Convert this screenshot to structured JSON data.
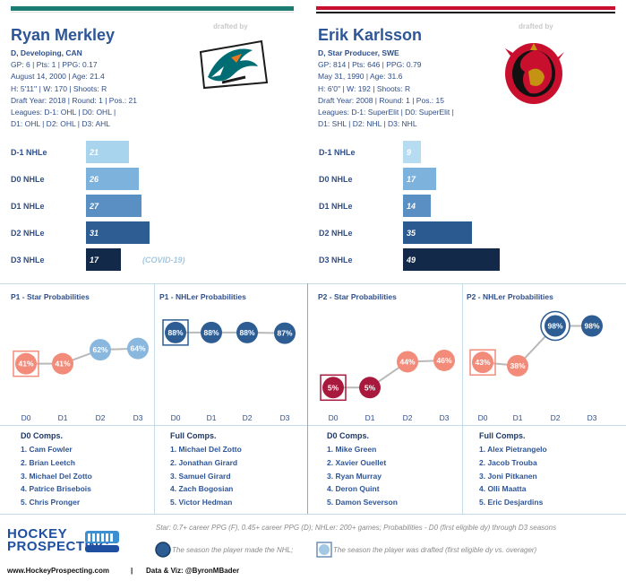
{
  "players": [
    {
      "name": "Ryan Merkley",
      "drafted_by": "drafted by",
      "info": [
        "D, Developing, CAN",
        "GP: 6 | Pts: 1 | PPG: 0.17",
        "August 14, 2000 | Age: 21.4",
        "H: 5'11'' | W: 170 | Shoots: R",
        "Draft Year: 2018 | Round: 1 | Pos.: 21",
        "Leagues: D-1: OHL | D0: OHL |",
        "D1: OHL | D2: OHL | D3: AHL"
      ],
      "team_logo": "san-jose-sharks-logo",
      "nhle": {
        "labels": [
          "D-1 NHLe",
          "D0 NHLe",
          "D1 NHLe",
          "D2 NHLe",
          "D3 NHLe"
        ],
        "values": [
          21,
          26,
          27,
          31,
          17
        ],
        "colors": [
          "#a8d4ee",
          "#7db2dd",
          "#5a8fc4",
          "#2d5d93",
          "#12294a"
        ],
        "note": "(COVID-19)"
      },
      "star_title": "P1 - Star Probabilities",
      "nhler_title": "P1 - NHLer Probabilities",
      "star_probs": [
        "41%",
        "41%",
        "62%",
        "64%"
      ],
      "star_values": [
        41,
        41,
        62,
        64
      ],
      "nhler_probs": [
        "88%",
        "88%",
        "88%",
        "87%"
      ],
      "nhler_values": [
        88,
        88,
        88,
        87
      ],
      "seasons": [
        "D0",
        "D1",
        "D2",
        "D3"
      ],
      "d0_comps_title": "D0 Comps.",
      "d0_comps": [
        "1. Cam Fowler",
        "2. Brian Leetch",
        "3. Michael Del Zotto",
        "4. Patrice Brisebois",
        "5. Chris Pronger"
      ],
      "full_comps_title": "Full Comps.",
      "full_comps": [
        "1. Michael Del Zotto",
        "2. Jonathan Girard",
        "3. Samuel Girard",
        "4. Zach Bogosian",
        "5. Victor Hedman"
      ]
    },
    {
      "name": "Erik Karlsson",
      "drafted_by": "drafted by",
      "info": [
        "D, Star Producer, SWE",
        "GP: 814 | Pts: 646 | PPG: 0.79",
        "May 31, 1990 | Age: 31.6",
        "H: 6'0'' | W: 192 | Shoots: R",
        "Draft Year: 2008 | Round: 1 | Pos.: 15",
        "Leagues: D-1: SuperElit | D0: SuperElit |",
        "D1: SHL | D2: NHL | D3: NHL"
      ],
      "team_logo": "ottawa-senators-logo",
      "nhle": {
        "labels": [
          "D-1 NHLe",
          "D0 NHLe",
          "D1 NHLe",
          "D2 NHLe",
          "D3 NHLe"
        ],
        "values": [
          9,
          17,
          14,
          35,
          49
        ],
        "colors": [
          "#b7dcf1",
          "#7db2dd",
          "#5a8fc4",
          "#2a5a8f",
          "#12294a"
        ],
        "note": ""
      },
      "star_title": "P2 - Star Probabilities",
      "nhler_title": "P2 - NHLer Probabilities",
      "star_probs": [
        "5%",
        "5%",
        "44%",
        "46%"
      ],
      "star_values": [
        5,
        5,
        44,
        46
      ],
      "nhler_probs": [
        "43%",
        "38%",
        "98%",
        "98%"
      ],
      "nhler_values": [
        43,
        38,
        98,
        98
      ],
      "seasons": [
        "D0",
        "D1",
        "D2",
        "D3"
      ],
      "d0_comps_title": "D0 Comps.",
      "d0_comps": [
        "1. Mike Green",
        "2. Xavier Ouellet",
        "3. Ryan Murray",
        "4. Deron Quint",
        "5. Damon Severson"
      ],
      "full_comps_title": "Full Comps.",
      "full_comps": [
        "1. Alex Pietrangelo",
        "2. Jacob Trouba",
        "3. Joni Pitkanen",
        "4. Olli Maatta",
        "5. Eric Desjardins"
      ]
    }
  ],
  "chart_data": [
    {
      "type": "bar",
      "title": "Ryan Merkley NHLe",
      "categories": [
        "D-1",
        "D0",
        "D1",
        "D2",
        "D3"
      ],
      "values": [
        21,
        26,
        27,
        31,
        17
      ]
    },
    {
      "type": "bar",
      "title": "Erik Karlsson NHLe",
      "categories": [
        "D-1",
        "D0",
        "D1",
        "D2",
        "D3"
      ],
      "values": [
        9,
        17,
        14,
        35,
        49
      ]
    },
    {
      "type": "line",
      "title": "P1 - Star Probabilities",
      "x": [
        "D0",
        "D1",
        "D2",
        "D3"
      ],
      "values": [
        41,
        41,
        62,
        64
      ],
      "ylim": [
        0,
        100
      ]
    },
    {
      "type": "line",
      "title": "P1 - NHLer Probabilities",
      "x": [
        "D0",
        "D1",
        "D2",
        "D3"
      ],
      "values": [
        88,
        88,
        88,
        87
      ],
      "ylim": [
        0,
        100
      ]
    },
    {
      "type": "line",
      "title": "P2 - Star Probabilities",
      "x": [
        "D0",
        "D1",
        "D2",
        "D3"
      ],
      "values": [
        5,
        5,
        44,
        46
      ],
      "ylim": [
        0,
        100
      ]
    },
    {
      "type": "line",
      "title": "P2 - NHLer Probabilities",
      "x": [
        "D0",
        "D1",
        "D2",
        "D3"
      ],
      "values": [
        43,
        38,
        98,
        98
      ],
      "ylim": [
        0,
        100
      ]
    }
  ],
  "footer": {
    "logo_line1": "HOCKEY",
    "logo_line2": "PROSPECTING",
    "legend_line1": "Star: 0.7+ career PPG (F), 0.45+ career PPG (D); NHLer: 200+ games; Probabilities - D0 (first eligible dy) through D3 seasons",
    "legend_made_nhl": "The season the player made the NHL;",
    "legend_drafted": "The season the player was drafted (first eligible dy vs. overager)",
    "website": "www.HockeyProspecting.com",
    "separator": "|",
    "credit": "Data & Viz: @ByronMBader"
  }
}
